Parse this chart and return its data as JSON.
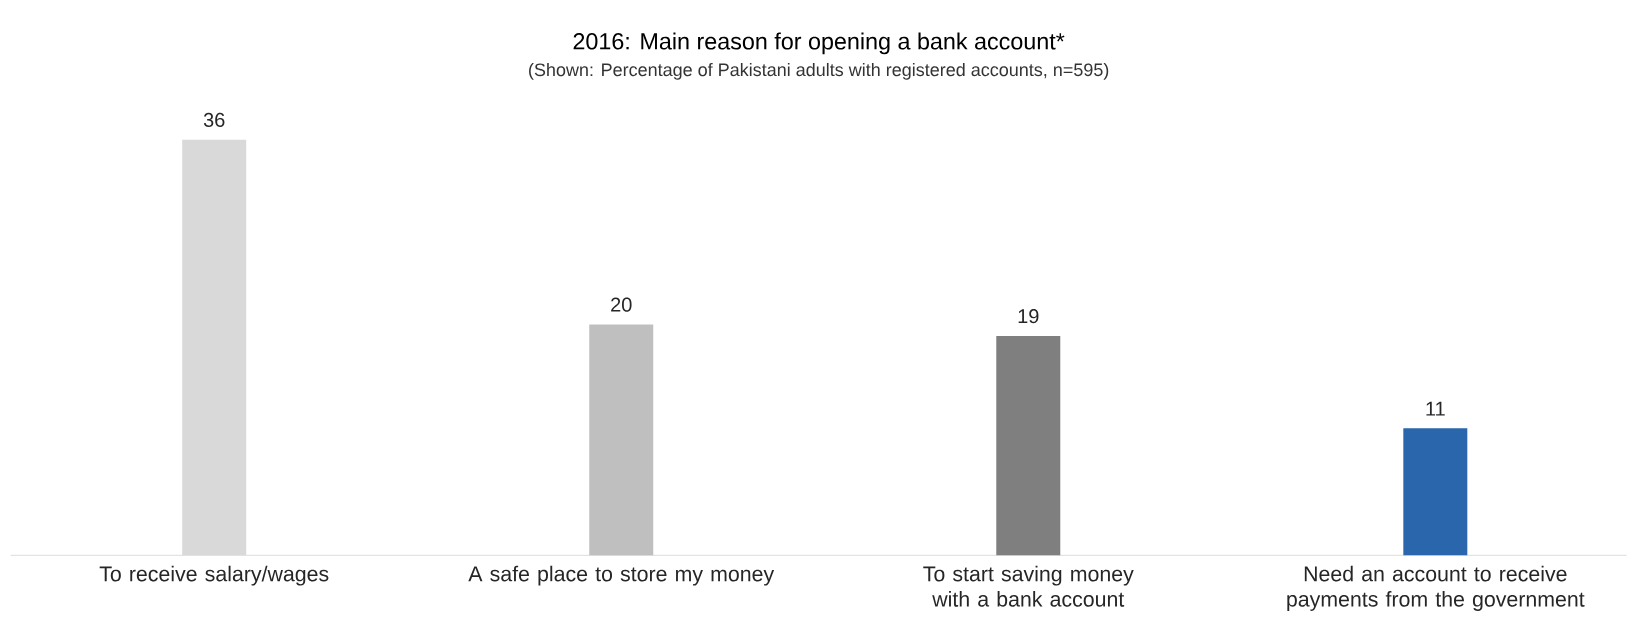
{
  "chart_data": {
    "type": "bar",
    "title": "2016: Main reason for opening a  bank account*",
    "subtitle": "(Shown: Percentage of Pakistani adults with registered accounts, n=595)",
    "categories": [
      "To receive salary/wages",
      "A safe place to store my money",
      "To start saving money with a bank account",
      "Need an account to receive payments from the government"
    ],
    "values": [
      36,
      20,
      19,
      11
    ],
    "colors": [
      "#d9d9d9",
      "#bfbfbf",
      "#7f7f7f",
      "#2966ac"
    ],
    "data_labels": true
  }
}
